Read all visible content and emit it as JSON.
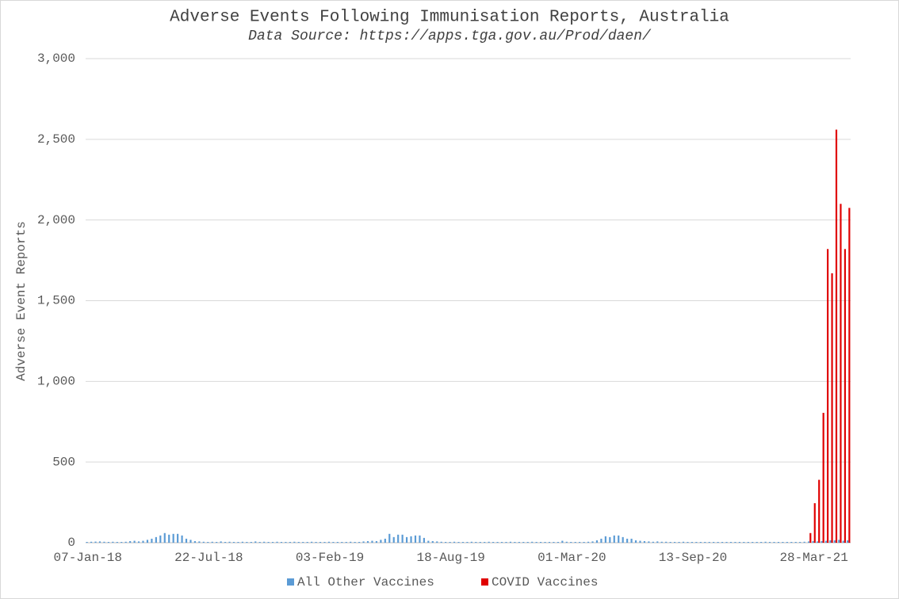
{
  "chart_data": {
    "type": "bar",
    "title": "Adverse Events Following Immunisation Reports, Australia",
    "subtitle": "Data Source: https://apps.tga.gov.au/Prod/daen/",
    "y_label": "Adverse Event Reports",
    "categories": [
      "07-Jan-18",
      null,
      null,
      null,
      null,
      null,
      null,
      null,
      null,
      null,
      null,
      null,
      null,
      null,
      null,
      null,
      null,
      null,
      null,
      null,
      null,
      null,
      null,
      null,
      null,
      null,
      null,
      null,
      "22-Jul-18",
      null,
      null,
      null,
      null,
      null,
      null,
      null,
      null,
      null,
      null,
      null,
      null,
      null,
      null,
      null,
      null,
      null,
      null,
      null,
      null,
      null,
      null,
      null,
      null,
      null,
      null,
      null,
      "03-Feb-19",
      null,
      null,
      null,
      null,
      null,
      null,
      null,
      null,
      null,
      null,
      null,
      null,
      null,
      null,
      null,
      null,
      null,
      null,
      null,
      null,
      null,
      null,
      null,
      null,
      null,
      null,
      null,
      "18-Aug-19",
      null,
      null,
      null,
      null,
      null,
      null,
      null,
      null,
      null,
      null,
      null,
      null,
      null,
      null,
      null,
      null,
      null,
      null,
      null,
      null,
      null,
      null,
      null,
      null,
      null,
      null,
      null,
      "01-Mar-20",
      null,
      null,
      null,
      null,
      null,
      null,
      null,
      null,
      null,
      null,
      null,
      null,
      null,
      null,
      null,
      null,
      null,
      null,
      null,
      null,
      null,
      null,
      null,
      null,
      null,
      null,
      null,
      "13-Sep-20",
      null,
      null,
      null,
      null,
      null,
      null,
      null,
      null,
      null,
      null,
      null,
      null,
      null,
      null,
      null,
      null,
      null,
      null,
      null,
      null,
      null,
      null,
      null,
      null,
      null,
      null,
      null,
      "28-Mar-21",
      null,
      null,
      null,
      null,
      null,
      null,
      null,
      null
    ],
    "series": [
      {
        "name": "All Other Vaccines",
        "color": "#5b9bd5",
        "values": [
          5,
          6,
          7,
          8,
          6,
          5,
          6,
          5,
          5,
          6,
          10,
          12,
          8,
          12,
          18,
          25,
          35,
          45,
          60,
          50,
          55,
          55,
          45,
          25,
          18,
          10,
          8,
          6,
          5,
          6,
          5,
          8,
          5,
          6,
          5,
          5,
          6,
          5,
          5,
          8,
          5,
          6,
          5,
          5,
          6,
          5,
          5,
          5,
          6,
          5,
          5,
          5,
          6,
          5,
          5,
          5,
          6,
          5,
          5,
          5,
          5,
          6,
          5,
          5,
          8,
          10,
          12,
          10,
          18,
          25,
          55,
          35,
          50,
          50,
          35,
          40,
          45,
          45,
          30,
          12,
          10,
          8,
          6,
          5,
          5,
          6,
          5,
          5,
          5,
          6,
          5,
          5,
          5,
          6,
          5,
          5,
          5,
          5,
          6,
          5,
          5,
          5,
          5,
          6,
          5,
          5,
          5,
          5,
          5,
          5,
          12,
          6,
          5,
          5,
          5,
          5,
          6,
          8,
          15,
          25,
          40,
          35,
          45,
          45,
          35,
          25,
          25,
          15,
          12,
          10,
          8,
          6,
          8,
          6,
          6,
          5,
          5,
          5,
          6,
          5,
          5,
          5,
          5,
          5,
          5,
          5,
          5,
          5,
          5,
          5,
          5,
          5,
          5,
          5,
          5,
          5,
          5,
          6,
          5,
          5,
          5,
          5,
          5,
          5,
          5,
          5,
          6,
          8,
          10,
          8,
          10,
          12,
          15,
          15,
          18,
          12,
          15
        ]
      },
      {
        "name": "COVID Vaccines",
        "color": "#e00000",
        "values": [
          null,
          null,
          null,
          null,
          null,
          null,
          null,
          null,
          null,
          null,
          null,
          null,
          null,
          null,
          null,
          null,
          null,
          null,
          null,
          null,
          null,
          null,
          null,
          null,
          null,
          null,
          null,
          null,
          null,
          null,
          null,
          null,
          null,
          null,
          null,
          null,
          null,
          null,
          null,
          null,
          null,
          null,
          null,
          null,
          null,
          null,
          null,
          null,
          null,
          null,
          null,
          null,
          null,
          null,
          null,
          null,
          null,
          null,
          null,
          null,
          null,
          null,
          null,
          null,
          null,
          null,
          null,
          null,
          null,
          null,
          null,
          null,
          null,
          null,
          null,
          null,
          null,
          null,
          null,
          null,
          null,
          null,
          null,
          null,
          null,
          null,
          null,
          null,
          null,
          null,
          null,
          null,
          null,
          null,
          null,
          null,
          null,
          null,
          null,
          null,
          null,
          null,
          null,
          null,
          null,
          null,
          null,
          null,
          null,
          null,
          null,
          null,
          null,
          null,
          null,
          null,
          null,
          null,
          null,
          null,
          null,
          null,
          null,
          null,
          null,
          null,
          null,
          null,
          null,
          null,
          null,
          null,
          null,
          null,
          null,
          null,
          null,
          null,
          null,
          null,
          null,
          null,
          null,
          null,
          null,
          null,
          null,
          null,
          null,
          null,
          null,
          null,
          null,
          null,
          null,
          null,
          null,
          null,
          null,
          null,
          null,
          null,
          null,
          null,
          null,
          null,
          null,
          60,
          245,
          390,
          805,
          1820,
          1670,
          2560,
          2100,
          1820,
          2075
        ]
      }
    ],
    "ylim": [
      0,
      3000
    ],
    "yticks": [
      0,
      500,
      {
        "value": 1000,
        "label": "1,000"
      },
      {
        "value": 1500,
        "label": "1,500"
      },
      {
        "value": 2000,
        "label": "2,000"
      },
      {
        "value": 2500,
        "label": "2,500"
      },
      {
        "value": 3000,
        "label": "3,000"
      }
    ],
    "grid": true,
    "legend": "bottom"
  }
}
